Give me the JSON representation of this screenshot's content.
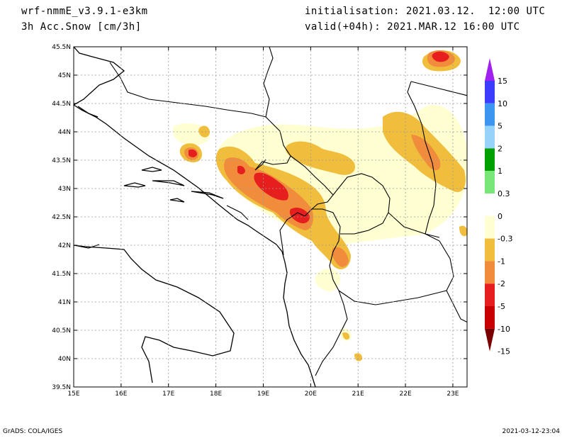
{
  "header": {
    "model": "wrf-nmmE_v3.9.1-e3km",
    "variable": "3h Acc.Snow [cm/3h]",
    "init": "initialisation: 2021.03.12.  12:00 UTC",
    "valid": "valid(+04h): 2021.MAR.12 16:00 UTC"
  },
  "footer": {
    "left": "GrADS: COLA/IGES",
    "right": "2021-03-12-23:04"
  },
  "axes": {
    "lon_ticks": [
      "15E",
      "16E",
      "17E",
      "18E",
      "19E",
      "20E",
      "21E",
      "22E",
      "23E"
    ],
    "lat_ticks": [
      "45.5N",
      "45N",
      "44.5N",
      "44N",
      "43.5N",
      "43N",
      "42.5N",
      "42N",
      "41.5N",
      "41N",
      "40.5N",
      "40N",
      "39.5N"
    ],
    "lon_range": [
      15.0,
      23.3
    ],
    "lat_range": [
      39.5,
      45.5
    ]
  },
  "colorbar": {
    "labels": [
      "15",
      "10",
      "5",
      "2",
      "1",
      "0.3",
      "0",
      "-0.3",
      "-1",
      "-2",
      "-5",
      "-10",
      "-15"
    ],
    "colors": [
      "#a020f0",
      "#3c3cff",
      "#3c96f0",
      "#96d2fa",
      "#00a000",
      "#78e678",
      "#ffffff",
      "#ffffd2",
      "#f0be3c",
      "#f08c3c",
      "#e61e1e",
      "#c80000",
      "#780000"
    ]
  },
  "snow_colors": {
    "light": "#ffffd2",
    "moderate": "#f0be3c",
    "heavy": "#f08c3c",
    "very_heavy": "#e61e1e"
  }
}
